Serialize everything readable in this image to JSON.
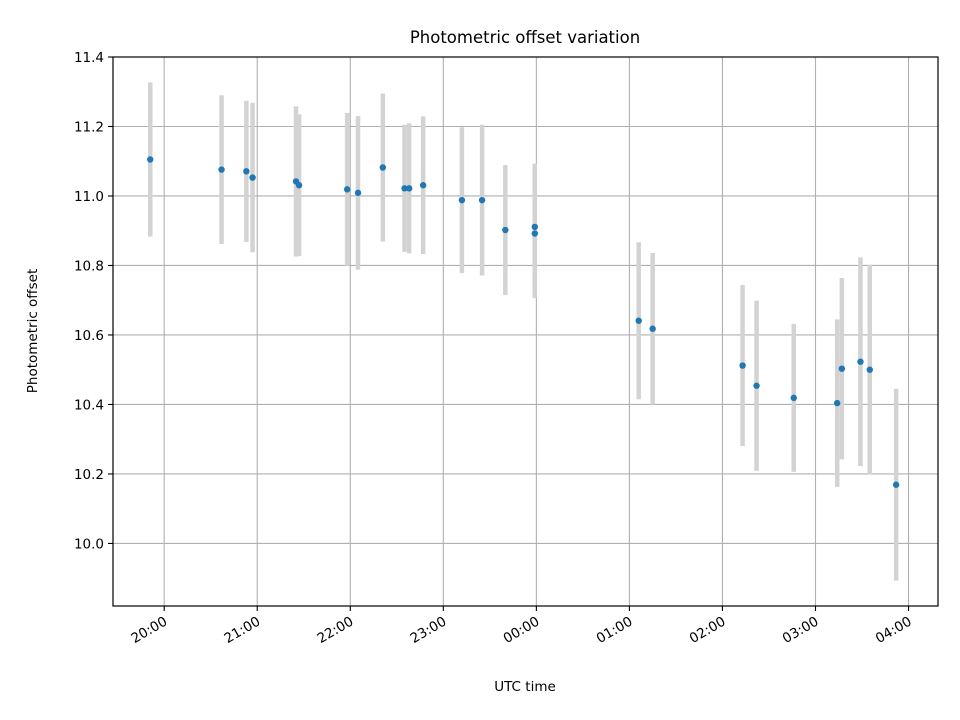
{
  "chart_data": {
    "type": "scatter",
    "title": "Photometric offset variation",
    "xlabel": "UTC time",
    "ylabel": "Photometric offset",
    "x_tick_labels": [
      "20:00",
      "21:00",
      "22:00",
      "23:00",
      "00:00",
      "01:00",
      "02:00",
      "03:00",
      "04:00"
    ],
    "x_tick_hours": [
      20,
      21,
      22,
      23,
      24,
      25,
      26,
      27,
      28
    ],
    "xlim": [
      "19:27",
      "04:19"
    ],
    "y_ticks": [
      "10.0",
      "10.2",
      "10.4",
      "10.6",
      "10.8",
      "11.0",
      "11.2",
      "11.4"
    ],
    "ylim": [
      9.82,
      11.4
    ],
    "grid": true,
    "marker_color": "#1f77b4",
    "errorbar_color": "#d3d3d3",
    "points": [
      {
        "time": "19:51",
        "y": 11.105,
        "err": 0.222
      },
      {
        "time": "20:37",
        "y": 11.076,
        "err": 0.214
      },
      {
        "time": "20:53",
        "y": 11.071,
        "err": 0.203
      },
      {
        "time": "20:57",
        "y": 11.053,
        "err": 0.215
      },
      {
        "time": "21:25",
        "y": 11.042,
        "err": 0.216
      },
      {
        "time": "21:27",
        "y": 11.031,
        "err": 0.204
      },
      {
        "time": "21:58",
        "y": 11.019,
        "err": 0.22
      },
      {
        "time": "22:05",
        "y": 11.009,
        "err": 0.221
      },
      {
        "time": "22:21",
        "y": 11.082,
        "err": 0.213
      },
      {
        "time": "22:35",
        "y": 11.022,
        "err": 0.183
      },
      {
        "time": "22:38",
        "y": 11.022,
        "err": 0.187
      },
      {
        "time": "22:47",
        "y": 11.031,
        "err": 0.198
      },
      {
        "time": "23:12",
        "y": 10.988,
        "err": 0.21
      },
      {
        "time": "23:25",
        "y": 10.988,
        "err": 0.217
      },
      {
        "time": "23:40",
        "y": 10.902,
        "err": 0.187
      },
      {
        "time": "23:59",
        "y": 10.911,
        "err": 0.182
      },
      {
        "time": "23:59",
        "y": 10.892,
        "err": 0.186
      },
      {
        "time": "01:06",
        "y": 10.641,
        "err": 0.226
      },
      {
        "time": "01:15",
        "y": 10.618,
        "err": 0.218
      },
      {
        "time": "02:13",
        "y": 10.512,
        "err": 0.232
      },
      {
        "time": "02:22",
        "y": 10.454,
        "err": 0.245
      },
      {
        "time": "02:46",
        "y": 10.419,
        "err": 0.213
      },
      {
        "time": "03:14",
        "y": 10.404,
        "err": 0.241
      },
      {
        "time": "03:17",
        "y": 10.503,
        "err": 0.261
      },
      {
        "time": "03:29",
        "y": 10.523,
        "err": 0.3
      },
      {
        "time": "03:35",
        "y": 10.5,
        "err": 0.302
      },
      {
        "time": "03:52",
        "y": 10.169,
        "err": 0.276
      }
    ]
  }
}
